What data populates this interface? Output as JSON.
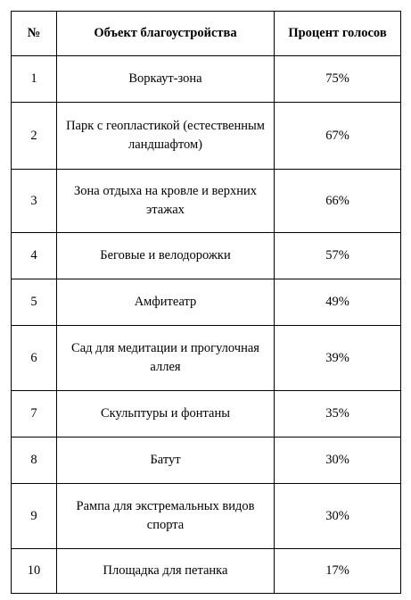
{
  "table": {
    "headers": [
      "№",
      "Объект благоустройства",
      "Процент голосов"
    ],
    "rows": [
      {
        "num": "1",
        "object": "Воркаут-зона",
        "percent": "75%"
      },
      {
        "num": "2",
        "object": "Парк с геопластикой (естественным ландшафтом)",
        "percent": "67%"
      },
      {
        "num": "3",
        "object": "Зона отдыха на кровле и верхних этажах",
        "percent": "66%"
      },
      {
        "num": "4",
        "object": "Беговые и велодорожки",
        "percent": "57%"
      },
      {
        "num": "5",
        "object": "Амфитеатр",
        "percent": "49%"
      },
      {
        "num": "6",
        "object": "Сад для медитации и прогулочная аллея",
        "percent": "39%"
      },
      {
        "num": "7",
        "object": "Скульптуры и фонтаны",
        "percent": "35%"
      },
      {
        "num": "8",
        "object": "Батут",
        "percent": "30%"
      },
      {
        "num": "9",
        "object": "Рампа для экстремальных видов спорта",
        "percent": "30%"
      },
      {
        "num": "10",
        "object": "Площадка для петанка",
        "percent": "17%"
      }
    ]
  }
}
